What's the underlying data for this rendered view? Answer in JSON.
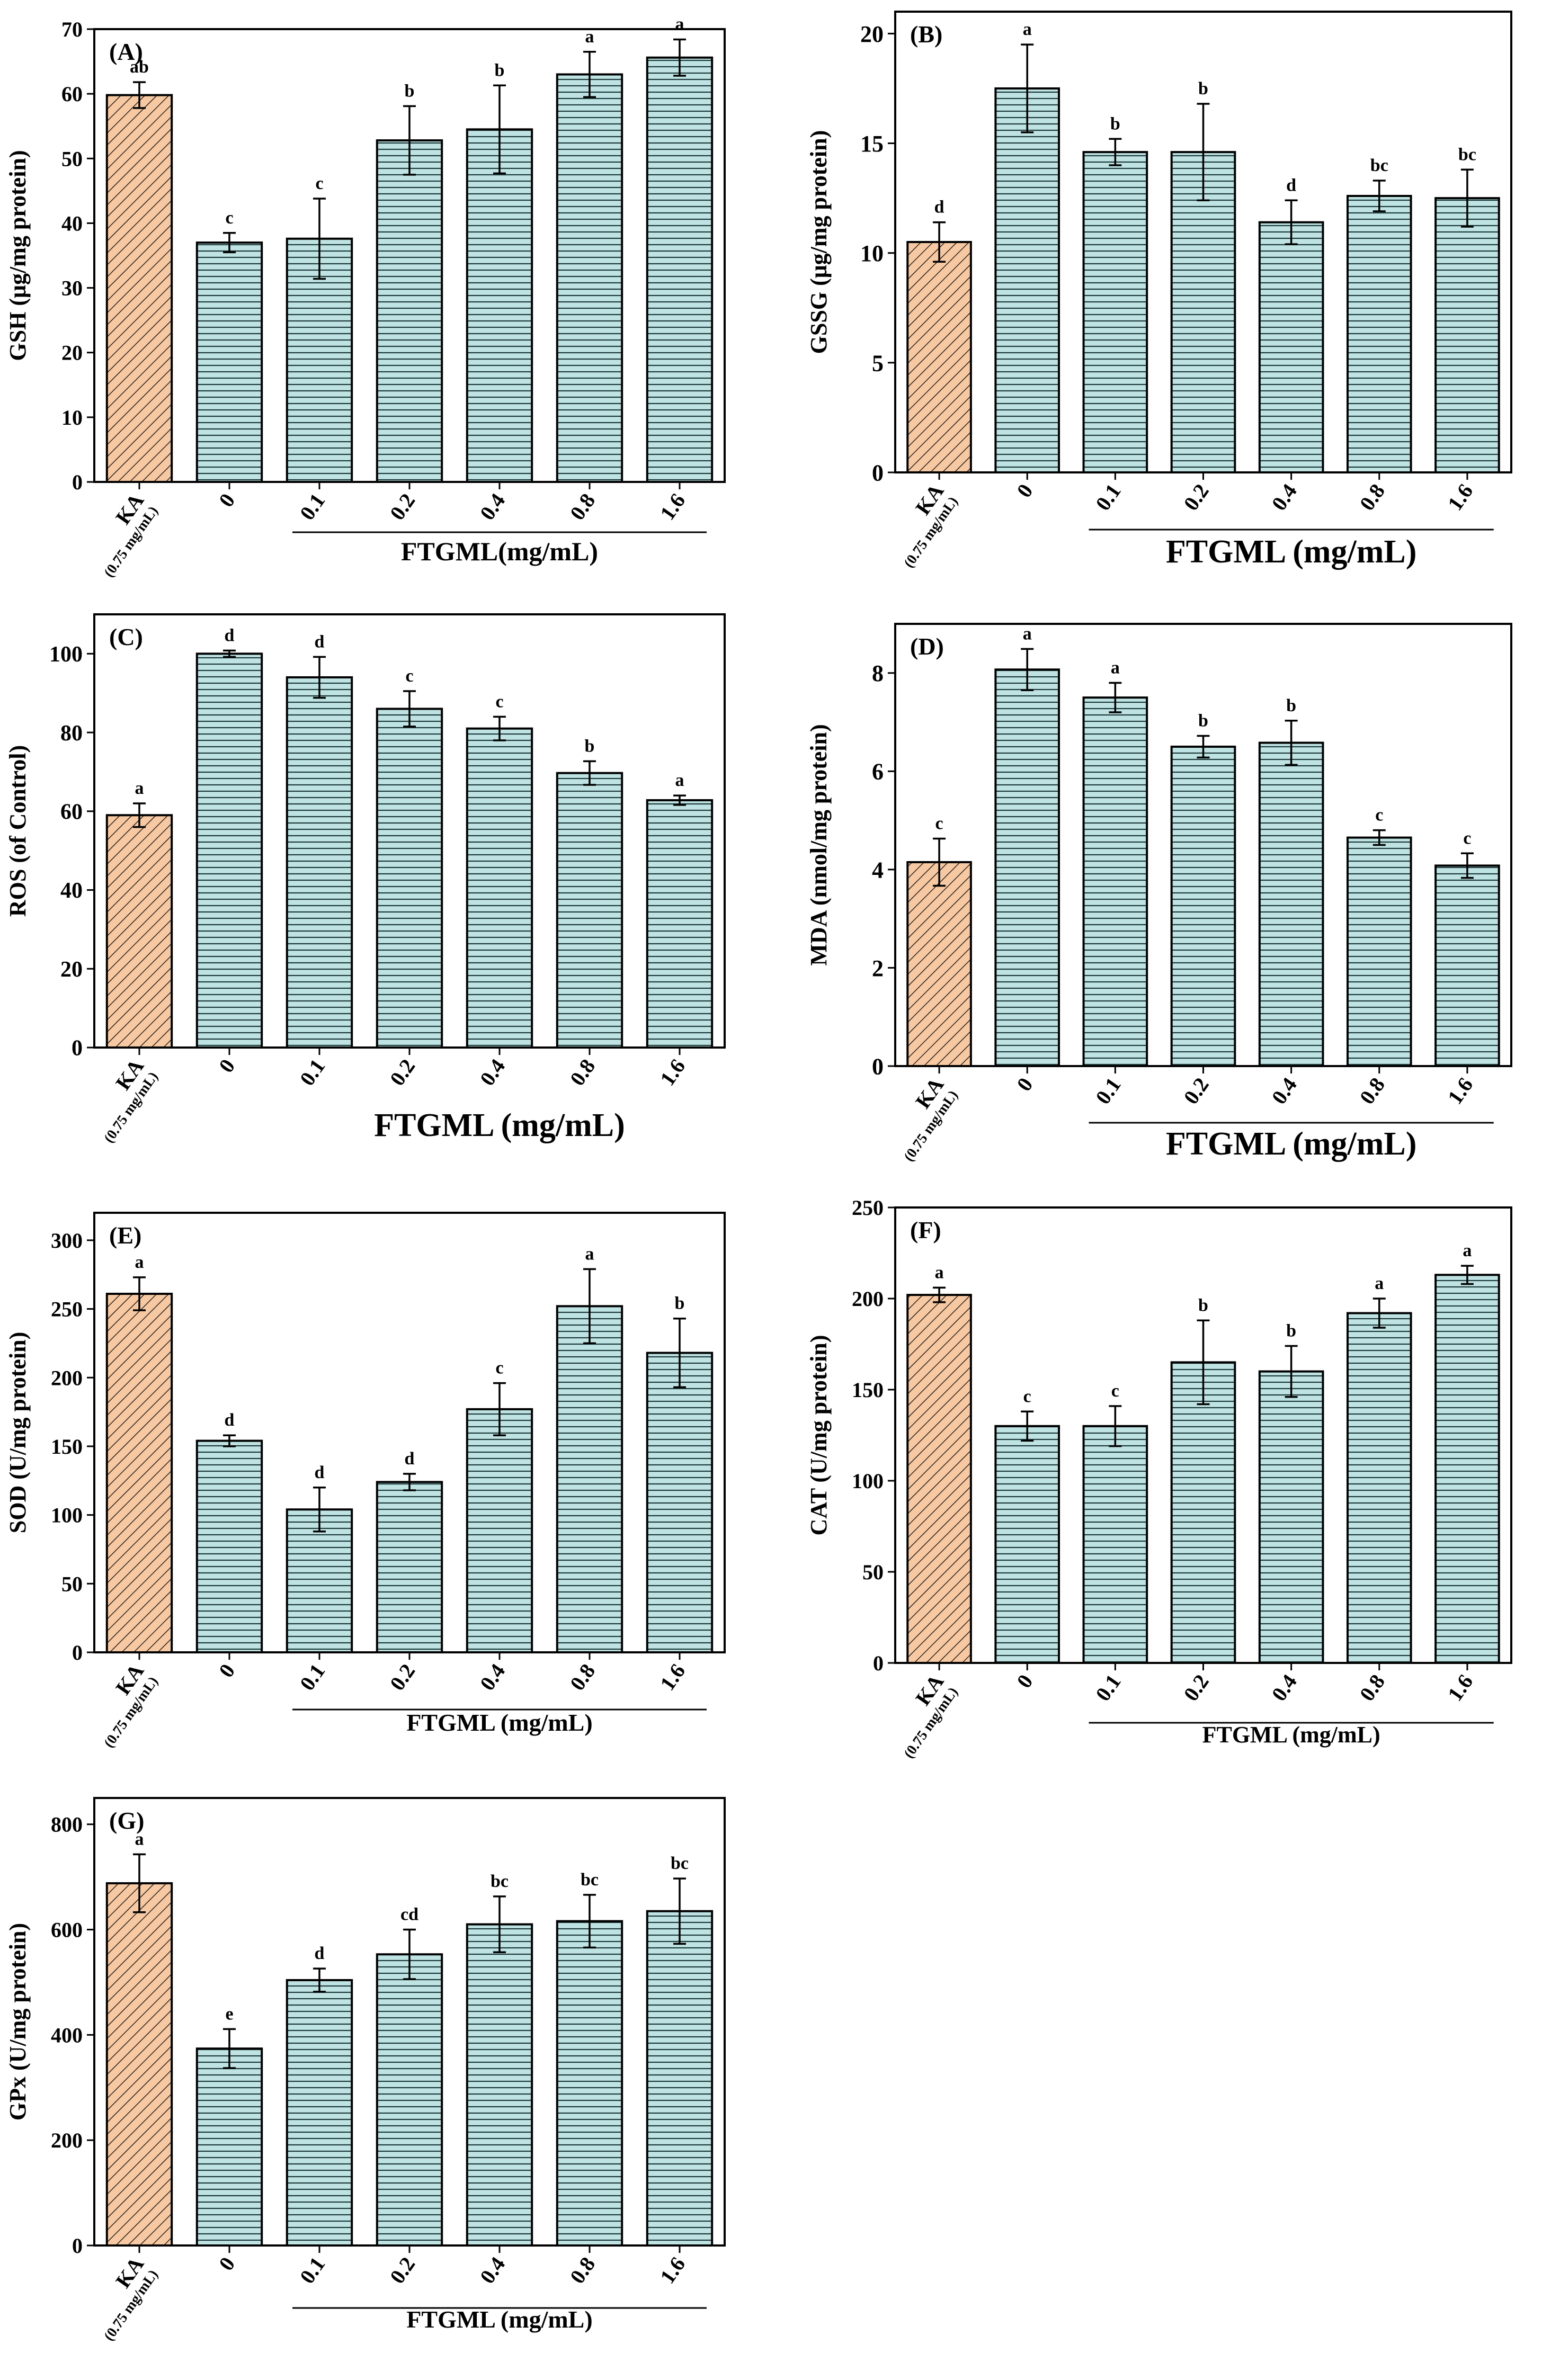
{
  "figure": {
    "x_categories": [
      "KA",
      "0",
      "0.1",
      "0.2",
      "0.4",
      "0.8",
      "1.6"
    ],
    "ka_sublabel": "(0.75 mg/mL)",
    "colors": {
      "ka_fill": "#f6c9a3",
      "ka_hatch": "#2b2018",
      "ftgml_fill": "#bfe3e3",
      "ftgml_hatch": "#1e3a3a",
      "frame": "#000000"
    }
  },
  "chart_data": [
    {
      "type": "bar",
      "panel": "(A)",
      "ylabel": "GSH (μg/mg protein)",
      "xlabel": "FTGML(mg/mL)",
      "ylim": [
        0,
        70
      ],
      "yticks": [
        0,
        10,
        20,
        30,
        40,
        50,
        60,
        70
      ],
      "categories": [
        "KA",
        "0",
        "0.1",
        "0.2",
        "0.4",
        "0.8",
        "1.6"
      ],
      "values": [
        59.8,
        37.0,
        37.6,
        52.8,
        54.5,
        63.0,
        65.6
      ],
      "errors": [
        2.0,
        1.5,
        6.2,
        5.3,
        6.8,
        3.5,
        2.8
      ],
      "letters": [
        "ab",
        "c",
        "c",
        "b",
        "b",
        "a",
        "a"
      ]
    },
    {
      "type": "bar",
      "panel": "(B)",
      "ylabel": "GSSG (μg/mg protein)",
      "xlabel": "FTGML (mg/mL)",
      "ylim": [
        0,
        21
      ],
      "yticks": [
        0,
        5,
        10,
        15,
        20
      ],
      "categories": [
        "KA",
        "0",
        "0.1",
        "0.2",
        "0.4",
        "0.8",
        "1.6"
      ],
      "values": [
        10.5,
        17.5,
        14.6,
        14.6,
        11.4,
        12.6,
        12.5
      ],
      "errors": [
        0.9,
        2.0,
        0.6,
        2.2,
        1.0,
        0.7,
        1.3
      ],
      "letters": [
        "d",
        "a",
        "b",
        "b",
        "d",
        "bc",
        "bc"
      ]
    },
    {
      "type": "bar",
      "panel": "(C)",
      "ylabel": "ROS (of Control)",
      "xlabel": "FTGML (mg/mL)",
      "ylim": [
        0,
        110
      ],
      "yticks": [
        0,
        20,
        40,
        60,
        80,
        100
      ],
      "categories": [
        "KA",
        "0",
        "0.1",
        "0.2",
        "0.4",
        "0.8",
        "1.6"
      ],
      "values": [
        59.0,
        100.0,
        94.0,
        86.0,
        81.0,
        69.7,
        62.8
      ],
      "errors": [
        3.0,
        0.8,
        5.2,
        4.5,
        3.0,
        3.0,
        1.2
      ],
      "letters": [
        "a",
        "d",
        "d",
        "c",
        "c",
        "b",
        "a"
      ]
    },
    {
      "type": "bar",
      "panel": "(D)",
      "ylabel": "MDA (nmol/mg protein)",
      "xlabel": "FTGML (mg/mL)",
      "ylim": [
        0,
        9
      ],
      "yticks": [
        0,
        2,
        4,
        6,
        8
      ],
      "categories": [
        "KA",
        "0",
        "0.1",
        "0.2",
        "0.4",
        "0.8",
        "1.6"
      ],
      "values": [
        4.15,
        8.07,
        7.5,
        6.5,
        6.58,
        4.65,
        4.08
      ],
      "errors": [
        0.48,
        0.42,
        0.3,
        0.22,
        0.45,
        0.15,
        0.25
      ],
      "letters": [
        "c",
        "a",
        "a",
        "b",
        "b",
        "c",
        "c"
      ]
    },
    {
      "type": "bar",
      "panel": "(E)",
      "ylabel": "SOD (U/mg protein)",
      "xlabel": "FTGML (mg/mL)",
      "ylim": [
        0,
        320
      ],
      "yticks": [
        0,
        50,
        100,
        150,
        200,
        250,
        300
      ],
      "categories": [
        "KA",
        "0",
        "0.1",
        "0.2",
        "0.4",
        "0.8",
        "1.6"
      ],
      "values": [
        261,
        154,
        104,
        124,
        177,
        252,
        218
      ],
      "errors": [
        12,
        4,
        16,
        6,
        19,
        27,
        25
      ],
      "letters": [
        "a",
        "d",
        "d",
        "d",
        "c",
        "a",
        "b"
      ]
    },
    {
      "type": "bar",
      "panel": "(F)",
      "ylabel": "CAT (U/mg protein)",
      "xlabel": "FTGML (mg/mL)",
      "ylim": [
        0,
        250
      ],
      "yticks": [
        0,
        50,
        100,
        150,
        200,
        250
      ],
      "categories": [
        "KA",
        "0",
        "0.1",
        "0.2",
        "0.4",
        "0.8",
        "1.6"
      ],
      "values": [
        202,
        130,
        130,
        165,
        160,
        192,
        213
      ],
      "errors": [
        4,
        8,
        11,
        23,
        14,
        8,
        5
      ],
      "letters": [
        "a",
        "c",
        "c",
        "b",
        "b",
        "a",
        "a"
      ]
    },
    {
      "type": "bar",
      "panel": "(G)",
      "ylabel": "GPx (U/mg protein)",
      "xlabel": "FTGML (mg/mL)",
      "ylim": [
        0,
        850
      ],
      "yticks": [
        0,
        200,
        400,
        600,
        800
      ],
      "categories": [
        "KA",
        "0",
        "0.1",
        "0.2",
        "0.4",
        "0.8",
        "1.6"
      ],
      "values": [
        688,
        374,
        504,
        553,
        610,
        616,
        635
      ],
      "errors": [
        55,
        37,
        22,
        47,
        53,
        50,
        62
      ],
      "letters": [
        "a",
        "e",
        "d",
        "cd",
        "bc",
        "bc",
        "bc"
      ]
    }
  ]
}
